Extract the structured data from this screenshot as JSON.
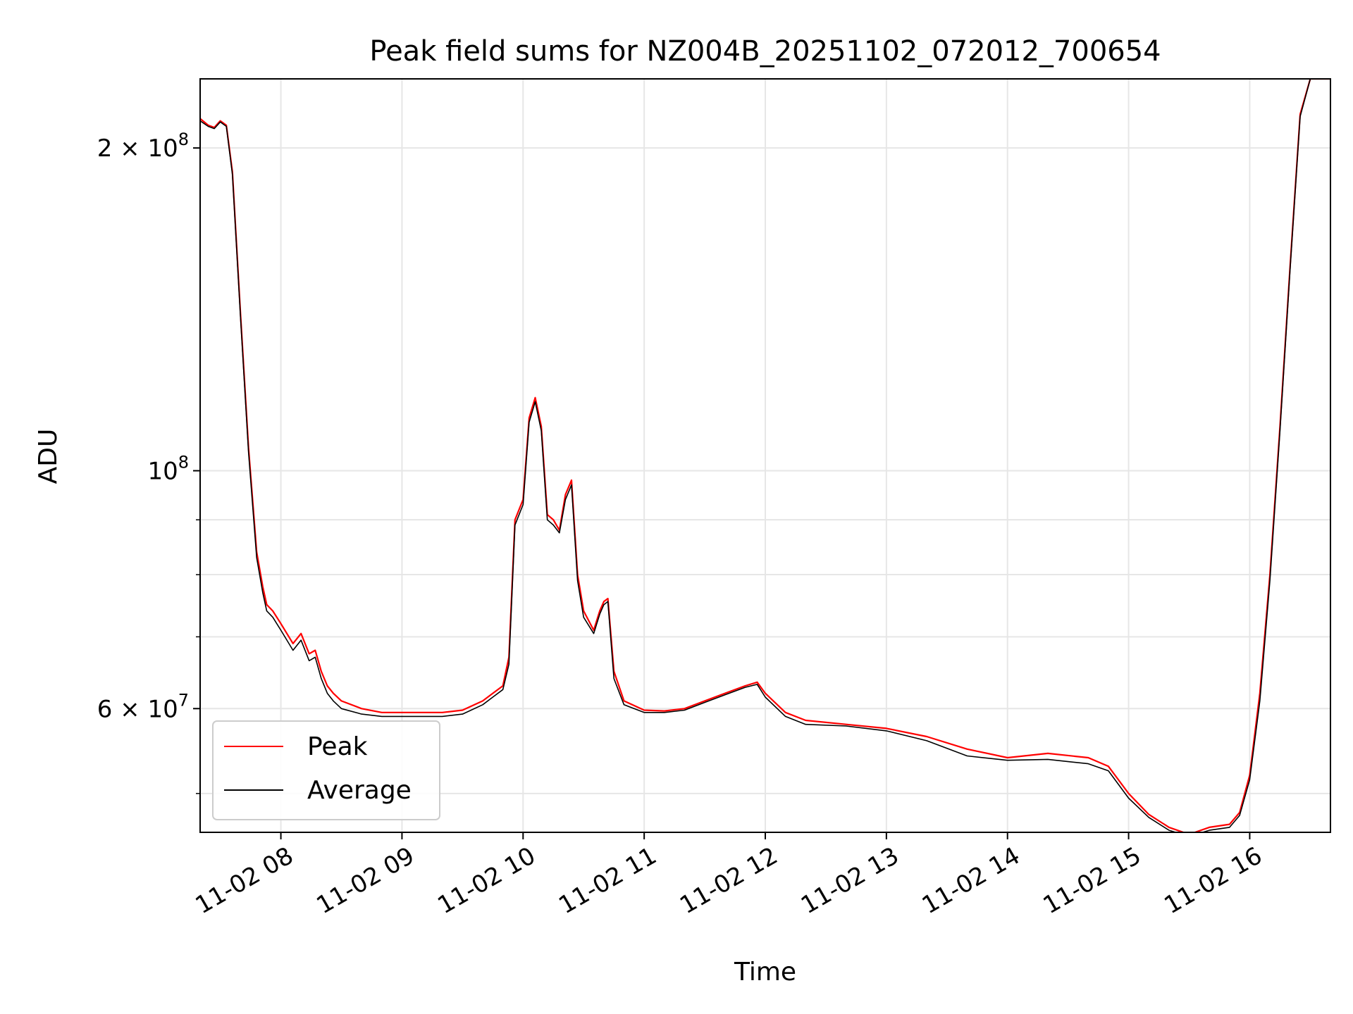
{
  "chart_data": {
    "type": "line",
    "title": "Peak field sums for NZ004B_20251102_072012_700654",
    "xlabel": "Time",
    "ylabel": "ADU",
    "yscale": "log",
    "xlim": [
      "11-02 07:20",
      "11-02 16:40"
    ],
    "ylim": [
      46000000,
      232000000
    ],
    "grid": true,
    "legend_position": "lower-left",
    "x_ticks": [
      {
        "t": "11-02 08:00",
        "label": "11-02 08"
      },
      {
        "t": "11-02 09:00",
        "label": "11-02 09"
      },
      {
        "t": "11-02 10:00",
        "label": "11-02 10"
      },
      {
        "t": "11-02 11:00",
        "label": "11-02 11"
      },
      {
        "t": "11-02 12:00",
        "label": "11-02 12"
      },
      {
        "t": "11-02 13:00",
        "label": "11-02 13"
      },
      {
        "t": "11-02 14:00",
        "label": "11-02 14"
      },
      {
        "t": "11-02 15:00",
        "label": "11-02 15"
      },
      {
        "t": "11-02 16:00",
        "label": "11-02 16"
      }
    ],
    "y_major_ticks": [
      {
        "value": 60000000,
        "mantissa": "6",
        "exponent": "7"
      },
      {
        "value": 100000000,
        "mantissa": "",
        "exponent": "8"
      },
      {
        "value": 200000000,
        "mantissa": "2",
        "exponent": "8"
      }
    ],
    "y_minor_ticks": [
      50000000,
      70000000,
      80000000,
      90000000
    ],
    "series": [
      {
        "name": "Peak",
        "color": "#ff0000",
        "x": [
          "11-02 07:20",
          "11-02 07:24",
          "11-02 07:27",
          "11-02 07:30",
          "11-02 07:33",
          "11-02 07:36",
          "11-02 07:40",
          "11-02 07:44",
          "11-02 07:48",
          "11-02 07:51",
          "11-02 07:53",
          "11-02 07:56",
          "11-02 08:00",
          "11-02 08:06",
          "11-02 08:10",
          "11-02 08:14",
          "11-02 08:17",
          "11-02 08:20",
          "11-02 08:23",
          "11-02 08:26",
          "11-02 08:30",
          "11-02 08:40",
          "11-02 08:50",
          "11-02 09:00",
          "11-02 09:10",
          "11-02 09:20",
          "11-02 09:30",
          "11-02 09:40",
          "11-02 09:45",
          "11-02 09:50",
          "11-02 09:53",
          "11-02 09:56",
          "11-02 10:00",
          "11-02 10:03",
          "11-02 10:06",
          "11-02 10:09",
          "11-02 10:12",
          "11-02 10:15",
          "11-02 10:18",
          "11-02 10:21",
          "11-02 10:24",
          "11-02 10:27",
          "11-02 10:30",
          "11-02 10:35",
          "11-02 10:38",
          "11-02 10:40",
          "11-02 10:42",
          "11-02 10:45",
          "11-02 10:50",
          "11-02 11:00",
          "11-02 11:10",
          "11-02 11:20",
          "11-02 11:30",
          "11-02 11:40",
          "11-02 11:50",
          "11-02 11:56",
          "11-02 12:00",
          "11-02 12:10",
          "11-02 12:20",
          "11-02 12:40",
          "11-02 13:00",
          "11-02 13:20",
          "11-02 13:40",
          "11-02 14:00",
          "11-02 14:20",
          "11-02 14:40",
          "11-02 14:50",
          "11-02 15:00",
          "11-02 15:10",
          "11-02 15:20",
          "11-02 15:30",
          "11-02 15:40",
          "11-02 15:50",
          "11-02 15:55",
          "11-02 16:00",
          "11-02 16:05",
          "11-02 16:10",
          "11-02 16:15",
          "11-02 16:20",
          "11-02 16:25",
          "11-02 16:30",
          "11-02 16:40"
        ],
        "y": [
          213000000,
          210000000,
          209000000,
          212000000,
          210000000,
          190000000,
          140000000,
          105000000,
          84000000,
          78000000,
          75000000,
          74000000,
          72000000,
          69000000,
          70500000,
          67500000,
          68000000,
          65000000,
          63000000,
          62000000,
          61000000,
          60000000,
          59500000,
          59500000,
          59500000,
          59500000,
          59800000,
          61000000,
          62000000,
          63000000,
          67000000,
          90000000,
          94000000,
          112000000,
          117000000,
          110000000,
          91000000,
          90000000,
          88000000,
          95000000,
          98000000,
          80000000,
          74000000,
          71000000,
          74000000,
          75500000,
          76000000,
          65000000,
          61000000,
          59800000,
          59700000,
          60000000,
          61000000,
          62000000,
          63000000,
          63500000,
          62000000,
          59500000,
          58500000,
          58000000,
          57500000,
          56500000,
          55000000,
          54000000,
          54500000,
          54000000,
          53000000,
          50000000,
          47800000,
          46500000,
          45800000,
          46500000,
          46800000,
          48000000,
          52000000,
          62000000,
          80000000,
          110000000,
          155000000,
          215000000,
          232000000,
          232000000
        ]
      },
      {
        "name": "Average",
        "color": "#000000",
        "x": [
          "11-02 07:20",
          "11-02 07:24",
          "11-02 07:27",
          "11-02 07:30",
          "11-02 07:33",
          "11-02 07:36",
          "11-02 07:40",
          "11-02 07:44",
          "11-02 07:48",
          "11-02 07:51",
          "11-02 07:53",
          "11-02 07:56",
          "11-02 08:00",
          "11-02 08:06",
          "11-02 08:10",
          "11-02 08:14",
          "11-02 08:17",
          "11-02 08:20",
          "11-02 08:23",
          "11-02 08:26",
          "11-02 08:30",
          "11-02 08:40",
          "11-02 08:50",
          "11-02 09:00",
          "11-02 09:10",
          "11-02 09:20",
          "11-02 09:30",
          "11-02 09:40",
          "11-02 09:45",
          "11-02 09:50",
          "11-02 09:53",
          "11-02 09:56",
          "11-02 10:00",
          "11-02 10:03",
          "11-02 10:06",
          "11-02 10:09",
          "11-02 10:12",
          "11-02 10:15",
          "11-02 10:18",
          "11-02 10:21",
          "11-02 10:24",
          "11-02 10:27",
          "11-02 10:30",
          "11-02 10:35",
          "11-02 10:38",
          "11-02 10:40",
          "11-02 10:42",
          "11-02 10:45",
          "11-02 10:50",
          "11-02 11:00",
          "11-02 11:10",
          "11-02 11:20",
          "11-02 11:30",
          "11-02 11:40",
          "11-02 11:50",
          "11-02 11:56",
          "11-02 12:00",
          "11-02 12:10",
          "11-02 12:20",
          "11-02 12:40",
          "11-02 13:00",
          "11-02 13:20",
          "11-02 13:40",
          "11-02 14:00",
          "11-02 14:20",
          "11-02 14:40",
          "11-02 14:50",
          "11-02 15:00",
          "11-02 15:10",
          "11-02 15:20",
          "11-02 15:30",
          "11-02 15:40",
          "11-02 15:50",
          "11-02 15:55",
          "11-02 16:00",
          "11-02 16:05",
          "11-02 16:10",
          "11-02 16:15",
          "11-02 16:20",
          "11-02 16:25",
          "11-02 16:30",
          "11-02 16:40"
        ],
        "y": [
          212000000,
          209500000,
          208500000,
          211500000,
          209500000,
          189000000,
          139000000,
          104000000,
          83000000,
          77000000,
          74000000,
          73000000,
          71000000,
          68000000,
          69500000,
          66500000,
          67000000,
          64000000,
          62000000,
          61000000,
          60000000,
          59300000,
          59000000,
          59000000,
          59000000,
          59000000,
          59300000,
          60500000,
          61500000,
          62500000,
          66000000,
          89000000,
          93000000,
          111000000,
          116000000,
          109000000,
          90000000,
          89000000,
          87500000,
          94000000,
          97000000,
          79000000,
          73000000,
          70500000,
          73500000,
          75000000,
          75500000,
          64000000,
          60500000,
          59500000,
          59500000,
          59800000,
          60800000,
          61800000,
          62800000,
          63200000,
          61500000,
          59000000,
          58000000,
          57800000,
          57200000,
          56000000,
          54200000,
          53700000,
          53800000,
          53300000,
          52500000,
          49500000,
          47500000,
          46200000,
          45600000,
          46200000,
          46500000,
          47700000,
          51500000,
          61000000,
          79000000,
          109000000,
          154000000,
          214000000,
          232000000,
          232000000
        ]
      }
    ]
  }
}
